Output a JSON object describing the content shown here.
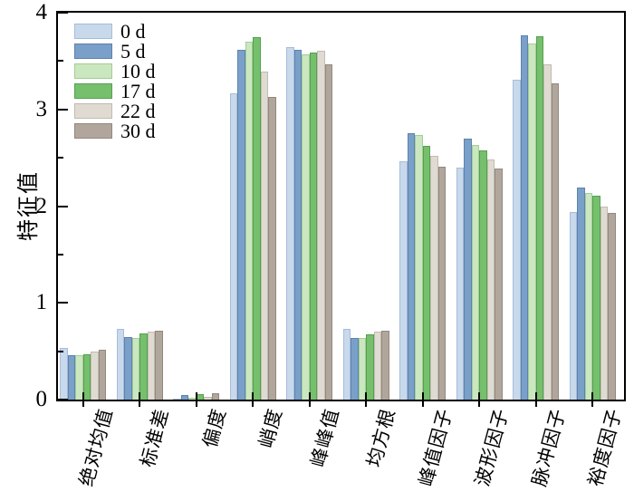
{
  "figure": {
    "background": "#ffffff",
    "axis_color": "#000000"
  },
  "chart_data": {
    "type": "bar",
    "title": "",
    "xlabel": "",
    "ylabel": "特征值",
    "ylim": [
      0,
      4
    ],
    "yticks": [
      0,
      1,
      2,
      3,
      4
    ],
    "yticks_minor": [
      0.5,
      1.5,
      2.5,
      3.5
    ],
    "grid": false,
    "legend_position": "top-left-inside",
    "categories": [
      "绝对均值",
      "标准差",
      "偏度",
      "峭度",
      "峰峰值",
      "均方根",
      "峰值因子",
      "波形因子",
      "脉冲因子",
      "裕度因子"
    ],
    "series": [
      {
        "name": "0 d",
        "color": "#c9d9ec",
        "edge_color": "#a6bcd9",
        "values": [
          0.53,
          0.73,
          0.01,
          3.17,
          3.64,
          0.73,
          2.46,
          2.4,
          3.31,
          1.94
        ]
      },
      {
        "name": "5 d",
        "color": "#7aa0c9",
        "edge_color": "#5c82ad",
        "values": [
          0.46,
          0.65,
          0.05,
          3.62,
          3.62,
          0.64,
          2.75,
          2.7,
          3.77,
          2.19
        ]
      },
      {
        "name": "10 d",
        "color": "#cae7c0",
        "edge_color": "#a4cc98",
        "values": [
          0.46,
          0.64,
          0.02,
          3.7,
          3.57,
          0.64,
          2.74,
          2.63,
          3.68,
          2.14
        ]
      },
      {
        "name": "17 d",
        "color": "#75bf6d",
        "edge_color": "#55a04e",
        "values": [
          0.47,
          0.68,
          0.06,
          3.75,
          3.59,
          0.67,
          2.62,
          2.58,
          3.76,
          2.11
        ]
      },
      {
        "name": "22 d",
        "color": "#dfdbd3",
        "edge_color": "#c1bbaf",
        "values": [
          0.5,
          0.7,
          0.03,
          3.39,
          3.61,
          0.7,
          2.52,
          2.48,
          3.47,
          2.0
        ]
      },
      {
        "name": "30 d",
        "color": "#b1a69c",
        "edge_color": "#93887e",
        "values": [
          0.52,
          0.71,
          0.07,
          3.13,
          3.47,
          0.71,
          2.41,
          2.39,
          3.27,
          1.93
        ]
      }
    ]
  }
}
